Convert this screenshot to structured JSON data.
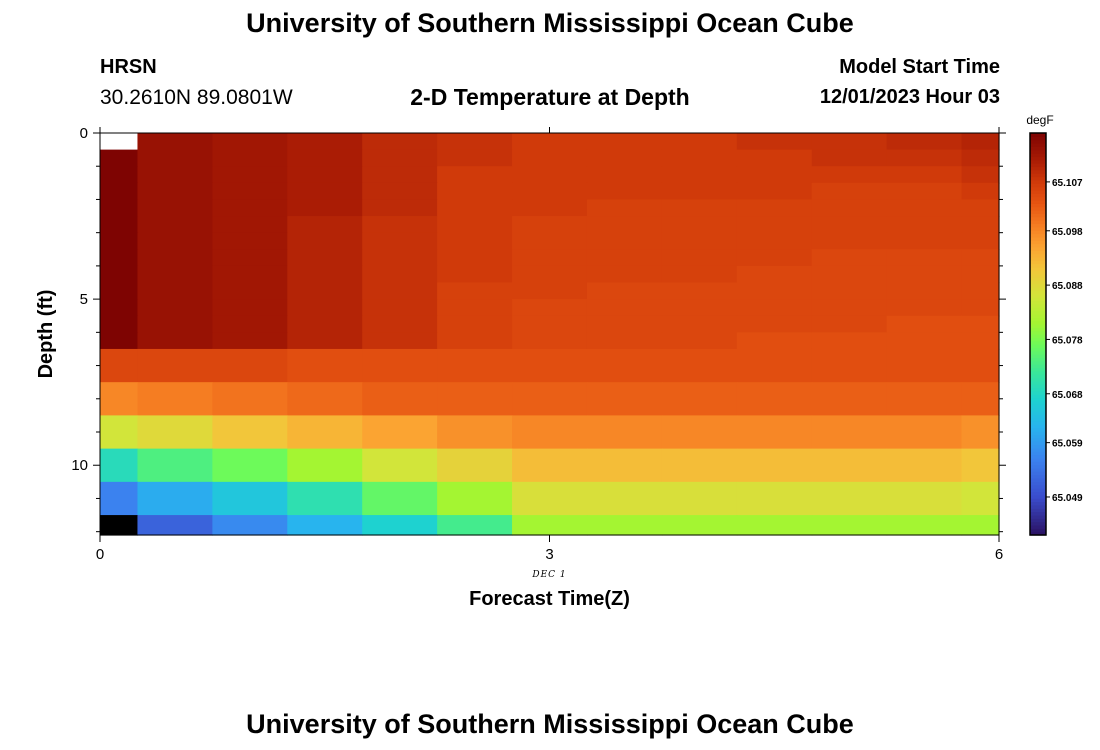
{
  "header": {
    "title": "University of Southern Mississippi Ocean Cube",
    "station_name": "HRSN",
    "station_coords": "30.2610N  89.0801W",
    "plot_title": "2-D Temperature at Depth",
    "model_start_label": "Model Start Time",
    "model_start_value": "12/01/2023 Hour 03"
  },
  "footer": {
    "title": "University of Southern Mississippi Ocean Cube"
  },
  "chart_data": {
    "type": "heatmap",
    "title": "2-D Temperature at Depth",
    "xlabel": "Forecast Time(Z)",
    "ylabel": "Depth (ft)",
    "x_date_label": "DEC 1",
    "xlim": [
      0,
      6
    ],
    "ylim": [
      12.1,
      0
    ],
    "x_ticks": [
      0,
      3,
      6
    ],
    "y_ticks": [
      0,
      5,
      10
    ],
    "x_edges": [
      0,
      0.25,
      0.75,
      1.25,
      1.75,
      2.25,
      2.75,
      3.25,
      3.75,
      4.25,
      4.75,
      5.25,
      5.75,
      6
    ],
    "depth_edges": [
      0,
      0.5,
      1,
      1.5,
      2,
      2.5,
      3,
      3.5,
      4,
      4.5,
      5,
      5.5,
      6,
      6.5,
      7.5,
      8.5,
      9.5,
      10.5,
      11.5,
      12.1
    ],
    "colorbar": {
      "unit": "degF",
      "min": 65.042,
      "max": 65.116,
      "tick_values": [
        65.049,
        65.059,
        65.068,
        65.078,
        65.088,
        65.098,
        65.107
      ],
      "tick_labels": [
        "65.049",
        "65.059",
        "65.068",
        "65.078",
        "65.088",
        "65.098",
        "65.107"
      ],
      "stops": [
        {
          "value": 65.042,
          "color": "#2a1060"
        },
        {
          "value": 65.049,
          "color": "#3a4ccc"
        },
        {
          "value": 65.056,
          "color": "#3b82ef"
        },
        {
          "value": 65.062,
          "color": "#28b4ee"
        },
        {
          "value": 65.067,
          "color": "#1ed2d0"
        },
        {
          "value": 65.072,
          "color": "#3ae79a"
        },
        {
          "value": 65.077,
          "color": "#6dfa5a"
        },
        {
          "value": 65.081,
          "color": "#a4f532"
        },
        {
          "value": 65.086,
          "color": "#d2e53a"
        },
        {
          "value": 65.091,
          "color": "#f2c63a"
        },
        {
          "value": 65.095,
          "color": "#fba432"
        },
        {
          "value": 65.099,
          "color": "#f57d22"
        },
        {
          "value": 65.103,
          "color": "#e75512"
        },
        {
          "value": 65.107,
          "color": "#d03a0a"
        },
        {
          "value": 65.111,
          "color": "#aa1c05"
        },
        {
          "value": 65.116,
          "color": "#7e0402"
        }
      ]
    },
    "values": [
      [
        null,
        65.113,
        65.112,
        65.111,
        65.109,
        65.108,
        65.107,
        65.107,
        65.107,
        65.108,
        65.108,
        65.109,
        65.11
      ],
      [
        65.116,
        65.113,
        65.112,
        65.111,
        65.109,
        65.108,
        65.107,
        65.107,
        65.107,
        65.107,
        65.108,
        65.108,
        65.109
      ],
      [
        65.116,
        65.113,
        65.112,
        65.111,
        65.109,
        65.107,
        65.107,
        65.107,
        65.107,
        65.107,
        65.107,
        65.107,
        65.108
      ],
      [
        65.116,
        65.113,
        65.112,
        65.111,
        65.109,
        65.107,
        65.107,
        65.107,
        65.107,
        65.107,
        65.106,
        65.106,
        65.107
      ],
      [
        65.116,
        65.113,
        65.112,
        65.111,
        65.109,
        65.107,
        65.107,
        65.106,
        65.106,
        65.106,
        65.106,
        65.106,
        65.106
      ],
      [
        65.116,
        65.113,
        65.112,
        65.11,
        65.108,
        65.107,
        65.106,
        65.106,
        65.106,
        65.106,
        65.106,
        65.106,
        65.106
      ],
      [
        65.116,
        65.113,
        65.112,
        65.11,
        65.108,
        65.107,
        65.106,
        65.106,
        65.106,
        65.106,
        65.106,
        65.106,
        65.106
      ],
      [
        65.116,
        65.113,
        65.112,
        65.11,
        65.108,
        65.107,
        65.106,
        65.106,
        65.106,
        65.106,
        65.105,
        65.105,
        65.105
      ],
      [
        65.116,
        65.113,
        65.112,
        65.11,
        65.108,
        65.107,
        65.106,
        65.106,
        65.106,
        65.105,
        65.105,
        65.105,
        65.105
      ],
      [
        65.116,
        65.113,
        65.112,
        65.11,
        65.108,
        65.106,
        65.106,
        65.105,
        65.105,
        65.105,
        65.105,
        65.105,
        65.105
      ],
      [
        65.116,
        65.113,
        65.112,
        65.11,
        65.108,
        65.106,
        65.105,
        65.105,
        65.105,
        65.105,
        65.105,
        65.105,
        65.105
      ],
      [
        65.116,
        65.113,
        65.112,
        65.11,
        65.108,
        65.106,
        65.105,
        65.105,
        65.105,
        65.105,
        65.105,
        65.104,
        65.104
      ],
      [
        65.116,
        65.113,
        65.112,
        65.11,
        65.108,
        65.106,
        65.105,
        65.105,
        65.105,
        65.104,
        65.104,
        65.104,
        65.104
      ],
      [
        65.105,
        65.105,
        65.105,
        65.104,
        65.104,
        65.104,
        65.104,
        65.104,
        65.104,
        65.104,
        65.104,
        65.104,
        65.104
      ],
      [
        65.098,
        65.099,
        65.1,
        65.101,
        65.102,
        65.102,
        65.102,
        65.102,
        65.102,
        65.102,
        65.102,
        65.102,
        65.102
      ],
      [
        65.086,
        65.088,
        65.091,
        65.093,
        65.095,
        65.097,
        65.098,
        65.098,
        65.098,
        65.098,
        65.098,
        65.098,
        65.097
      ],
      [
        65.069,
        65.074,
        65.077,
        65.081,
        65.086,
        65.089,
        65.092,
        65.092,
        65.092,
        65.092,
        65.092,
        65.092,
        65.091
      ],
      [
        65.056,
        65.061,
        65.065,
        65.07,
        65.076,
        65.081,
        65.087,
        65.087,
        65.087,
        65.087,
        65.087,
        65.087,
        65.086
      ],
      [
        65.04,
        65.052,
        65.057,
        65.062,
        65.067,
        65.073,
        65.081,
        65.081,
        65.081,
        65.081,
        65.081,
        65.081,
        65.081
      ]
    ]
  }
}
